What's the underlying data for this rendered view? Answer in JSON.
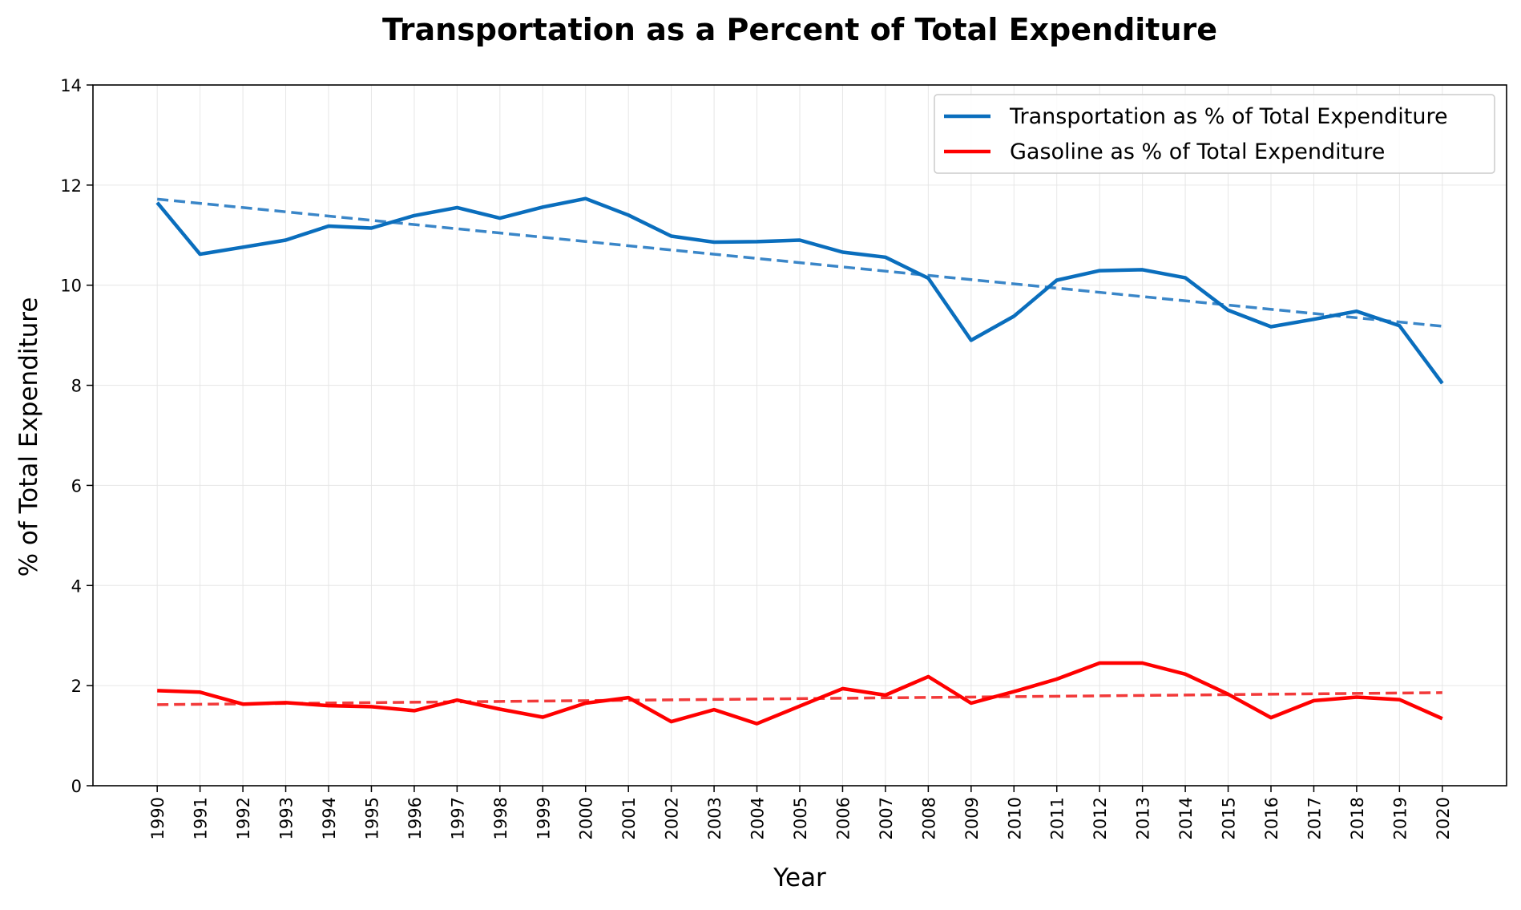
{
  "chart_data": {
    "type": "line",
    "title": "Transportation as a Percent of Total Expenditure",
    "xlabel": "Year",
    "ylabel": "% of Total Expenditure",
    "x": [
      1990,
      1991,
      1992,
      1993,
      1994,
      1995,
      1996,
      1997,
      1998,
      1999,
      2000,
      2001,
      2002,
      2003,
      2004,
      2005,
      2006,
      2007,
      2008,
      2009,
      2010,
      2011,
      2012,
      2013,
      2014,
      2015,
      2016,
      2017,
      2018,
      2019,
      2020
    ],
    "x_tick_labels": [
      "1990",
      "1991",
      "1992",
      "1993",
      "1994",
      "1995",
      "1996",
      "1997",
      "1998",
      "1999",
      "2000",
      "2001",
      "2002",
      "2003",
      "2004",
      "2005",
      "2006",
      "2007",
      "2008",
      "2009",
      "2010",
      "2011",
      "2012",
      "2013",
      "2014",
      "2015",
      "2016",
      "2017",
      "2018",
      "2019",
      "2020"
    ],
    "x_tick_rotation": "vertical",
    "xlim": [
      1988.5,
      2021.5
    ],
    "ylim": [
      0,
      14
    ],
    "y_ticks": [
      0,
      2,
      4,
      6,
      8,
      10,
      12,
      14
    ],
    "y_tick_labels": [
      "0",
      "2",
      "4",
      "6",
      "8",
      "10",
      "12",
      "14"
    ],
    "grid": true,
    "legend_position": "top-right",
    "series": [
      {
        "name": "Transportation as % of Total Expenditure",
        "color": "#0a6ebd",
        "style": "solid",
        "values": [
          11.65,
          10.62,
          10.76,
          10.9,
          11.18,
          11.14,
          11.39,
          11.55,
          11.34,
          11.56,
          11.73,
          11.4,
          10.98,
          10.86,
          10.87,
          10.9,
          10.66,
          10.56,
          10.14,
          8.9,
          9.38,
          10.1,
          10.29,
          10.31,
          10.15,
          9.5,
          9.17,
          9.32,
          9.48,
          9.19,
          8.04
        ]
      },
      {
        "name": "Gasoline as % of Total Expenditure",
        "color": "#ff0000",
        "style": "solid",
        "values": [
          1.9,
          1.87,
          1.63,
          1.66,
          1.6,
          1.58,
          1.5,
          1.71,
          1.53,
          1.37,
          1.65,
          1.76,
          1.28,
          1.52,
          1.24,
          1.59,
          1.94,
          1.81,
          2.18,
          1.65,
          1.88,
          2.13,
          2.45,
          2.45,
          2.23,
          1.83,
          1.36,
          1.7,
          1.77,
          1.72,
          1.34
        ]
      }
    ],
    "trendlines": [
      {
        "of_series": "Transportation as % of Total Expenditure",
        "color": "#3a86c8",
        "style": "dashed",
        "x_range": [
          1990,
          2020
        ],
        "y_range": [
          11.72,
          9.18
        ]
      },
      {
        "of_series": "Gasoline as % of Total Expenditure",
        "color": "#f23a3a",
        "style": "dashed",
        "x_range": [
          1990,
          2020
        ],
        "y_range": [
          1.62,
          1.86
        ]
      }
    ]
  }
}
